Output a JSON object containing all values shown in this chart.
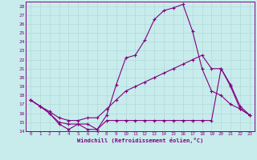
{
  "xlabel": "Windchill (Refroidissement éolien,°C)",
  "bg_color": "#c8ecec",
  "line_color": "#800080",
  "grid_color": "#b0d8d8",
  "xlim": [
    -0.5,
    23.5
  ],
  "ylim": [
    14,
    28.5
  ],
  "xticks": [
    0,
    1,
    2,
    3,
    4,
    5,
    6,
    7,
    8,
    9,
    10,
    11,
    12,
    13,
    14,
    15,
    16,
    17,
    18,
    19,
    20,
    21,
    22,
    23
  ],
  "yticks": [
    14,
    15,
    16,
    17,
    18,
    19,
    20,
    21,
    22,
    23,
    24,
    25,
    26,
    27,
    28
  ],
  "line1_x": [
    0,
    1,
    2,
    3,
    4,
    5,
    6,
    7,
    8,
    9,
    10,
    11,
    12,
    13,
    14,
    15,
    16,
    17,
    18,
    19,
    20,
    21,
    22,
    23
  ],
  "line1_y": [
    17.5,
    16.8,
    16.0,
    14.8,
    14.2,
    14.8,
    14.2,
    14.2,
    15.8,
    19.2,
    22.2,
    22.5,
    24.2,
    26.5,
    27.5,
    27.8,
    28.2,
    25.2,
    21.0,
    18.5,
    18.0,
    17.0,
    16.5,
    15.8
  ],
  "line2_x": [
    0,
    1,
    2,
    3,
    4,
    5,
    6,
    7,
    8,
    9,
    10,
    11,
    12,
    13,
    14,
    15,
    16,
    17,
    18,
    19,
    20,
    21,
    22,
    23
  ],
  "line2_y": [
    17.5,
    16.8,
    16.2,
    15.5,
    15.2,
    15.2,
    15.5,
    15.5,
    16.5,
    17.5,
    18.5,
    19.0,
    19.5,
    20.0,
    20.5,
    21.0,
    21.5,
    22.0,
    22.5,
    21.0,
    21.0,
    19.2,
    16.8,
    15.8
  ],
  "line3_x": [
    0,
    1,
    2,
    3,
    4,
    5,
    6,
    7,
    8,
    9,
    10,
    11,
    12,
    13,
    14,
    15,
    16,
    17,
    18,
    19,
    20,
    21,
    22,
    23
  ],
  "line3_y": [
    17.5,
    16.8,
    16.0,
    15.0,
    14.8,
    14.8,
    14.8,
    14.2,
    15.2,
    15.2,
    15.2,
    15.2,
    15.2,
    15.2,
    15.2,
    15.2,
    15.2,
    15.2,
    15.2,
    15.2,
    21.0,
    19.0,
    16.5,
    15.8
  ]
}
